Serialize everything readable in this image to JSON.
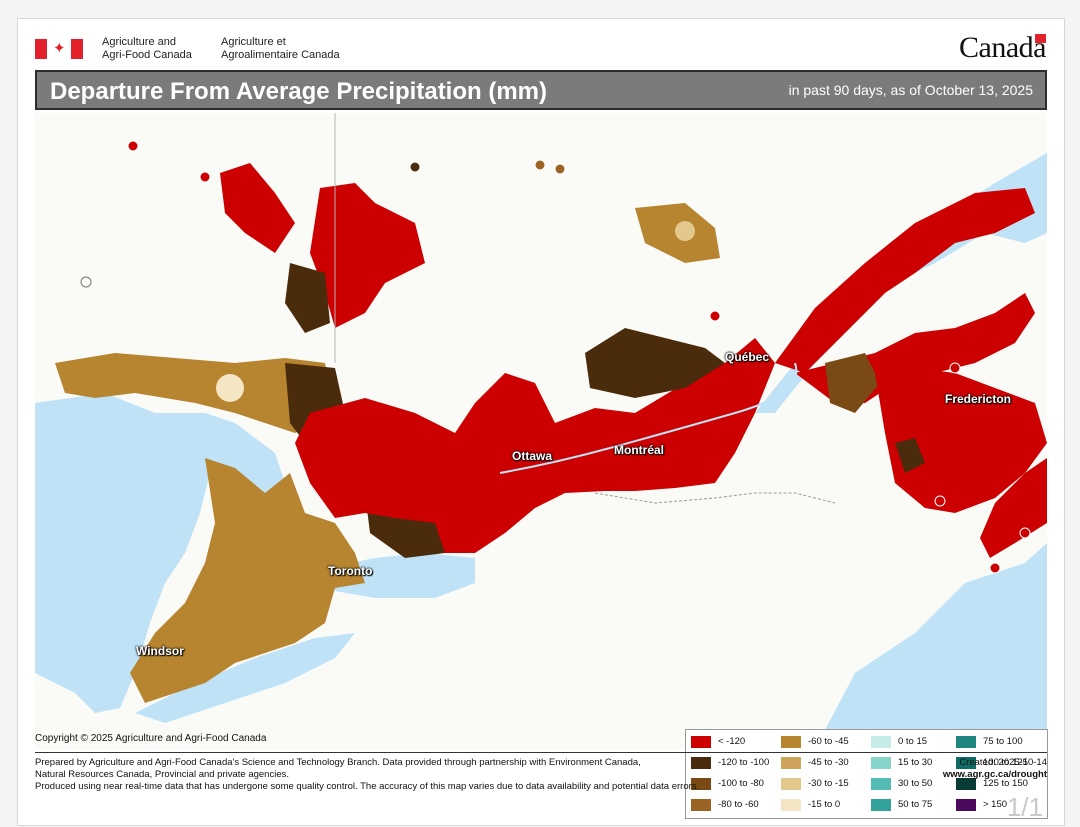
{
  "header": {
    "dept_en": "Agriculture and\nAgri-Food Canada",
    "dept_fr": "Agriculture et\nAgroalimentaire Canada",
    "wordmark": "Canadä"
  },
  "title": "Departure From Average Precipitation (mm)",
  "subtitle": "in past 90 days, as of October 13, 2025",
  "cities": [
    {
      "name": "Québec"
    },
    {
      "name": "Fredericton"
    },
    {
      "name": "Ottawa"
    },
    {
      "name": "Montréal"
    },
    {
      "name": "Toronto"
    },
    {
      "name": "Windsor"
    }
  ],
  "legend": [
    {
      "label": "< -120",
      "color": "#cc0000"
    },
    {
      "label": "-120 to -100",
      "color": "#4a2c0c"
    },
    {
      "label": "-100 to -80",
      "color": "#7a4a14"
    },
    {
      "label": "-80 to -60",
      "color": "#9c6424"
    },
    {
      "label": "-60 to -45",
      "color": "#b7842f"
    },
    {
      "label": "-45 to -30",
      "color": "#cda45a"
    },
    {
      "label": "-30 to -15",
      "color": "#e2c88c"
    },
    {
      "label": "-15 to 0",
      "color": "#f4e6c3"
    },
    {
      "label": "0 to 15",
      "color": "#c6ecea"
    },
    {
      "label": "15 to 30",
      "color": "#86d5cd"
    },
    {
      "label": "30 to 50",
      "color": "#53bdb4"
    },
    {
      "label": "50 to 75",
      "color": "#33a29b"
    },
    {
      "label": "75 to 100",
      "color": "#1f857f"
    },
    {
      "label": "100 to 125",
      "color": "#0f6b66"
    },
    {
      "label": "125 to 150",
      "color": "#073b33"
    },
    {
      "label": "> 150",
      "color": "#4b0a5e"
    }
  ],
  "copyright": "Copyright © 2025 Agriculture and Agri-Food Canada",
  "footer": {
    "line1": "Prepared by Agriculture and Agri-Food Canada's Science and Technology Branch. Data provided through partnership with Environment Canada,",
    "line2": "Natural Resources Canada, Provincial and private agencies.",
    "line3": "Produced using near real-time data that has undergone some quality control. The accuracy of this map varies due to data availability and potential data errors.",
    "created": "Created: 2025-10-14",
    "url": "www.agr.gc.ca/drought"
  },
  "pager": "1/1",
  "colors": {
    "title_bar": "#7b7b7b",
    "water": "#bfe2f6",
    "land": "#fafaf7",
    "flag_red": "#e3212a"
  }
}
